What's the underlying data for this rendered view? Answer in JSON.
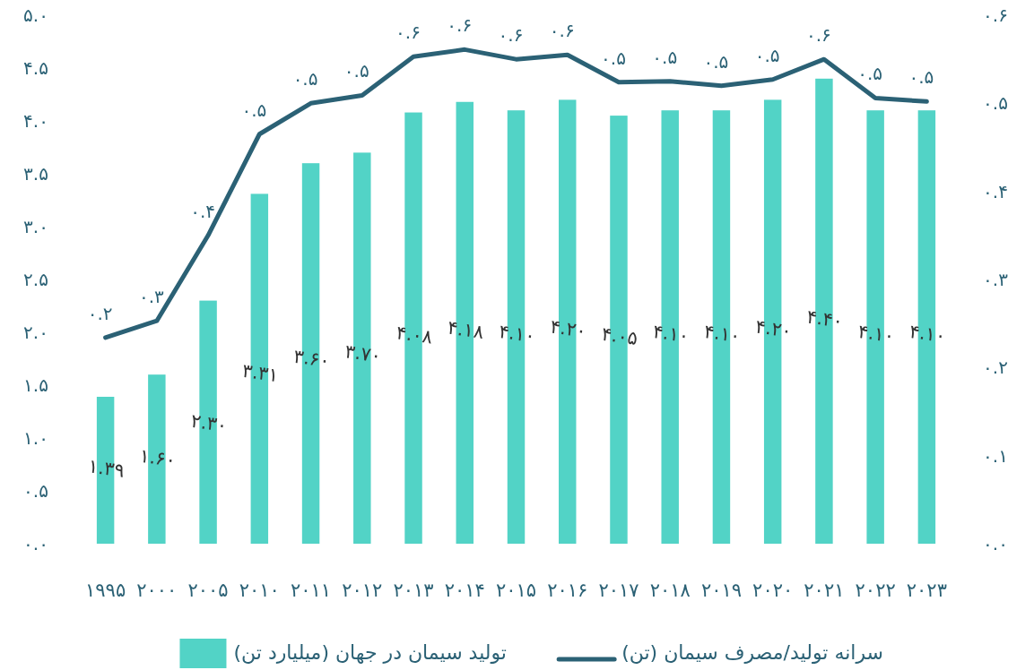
{
  "chart_data": {
    "type": "bar",
    "categories": [
      "۱۹۹۵",
      "۲۰۰۰",
      "۲۰۰۵",
      "۲۰۱۰",
      "۲۰۱۱",
      "۲۰۱۲",
      "۲۰۱۳",
      "۲۰۱۴",
      "۲۰۱۵",
      "۲۰۱۶",
      "۲۰۱۷",
      "۲۰۱۸",
      "۲۰۱۹",
      "۲۰۲۰",
      "۲۰۲۱",
      "۲۰۲۲",
      "۲۰۲۳"
    ],
    "series": [
      {
        "name": "تولید سیمان در جهان (میلیارد تن)",
        "color": "#52d3c6",
        "values": [
          1.39,
          1.6,
          2.3,
          3.31,
          3.6,
          3.7,
          4.08,
          4.18,
          4.1,
          4.2,
          4.05,
          4.1,
          4.1,
          4.2,
          4.4,
          4.1,
          4.1
        ],
        "value_labels": [
          "۱.۳۹",
          "۱.۶۰",
          "۲.۳۰",
          "۳.۳۱",
          "۳.۶۰",
          "۳.۷۰",
          "۴.۰۸",
          "۴.۱۸",
          "۴.۱۰",
          "۴.۲۰",
          "۴.۰۵",
          "۴.۱۰",
          "۴.۱۰",
          "۴.۲۰",
          "۴.۴۰",
          "۴.۱۰",
          "۴.۱۰"
        ]
      },
      {
        "name": "سرانه تولید/مصرف سیمان (تن)",
        "type": "line",
        "axis": "y2",
        "color": "#2b6175",
        "values": [
          0.234,
          0.253,
          0.35,
          0.465,
          0.5,
          0.509,
          0.553,
          0.561,
          0.55,
          0.555,
          0.524,
          0.525,
          0.52,
          0.527,
          0.55,
          0.506,
          0.502
        ],
        "value_labels": [
          "۰.۲",
          "۰.۳",
          "۰.۴",
          "۰.۵",
          "۰.۵",
          "۰.۵",
          "۰.۶",
          "۰.۶",
          "۰.۶",
          "۰.۶",
          "۰.۵",
          "۰.۵",
          "۰.۵",
          "۰.۵",
          "۰.۶",
          "۰.۵",
          "۰.۵"
        ]
      }
    ],
    "ylim": [
      0,
      5
    ],
    "yticks": [
      {
        "value": 0,
        "label": "۰.۰"
      },
      {
        "value": 0.5,
        "label": "۰.۵"
      },
      {
        "value": 1,
        "label": "۱.۰"
      },
      {
        "value": 1.5,
        "label": "۱.۵"
      },
      {
        "value": 2,
        "label": "۲.۰"
      },
      {
        "value": 2.5,
        "label": "۲.۵"
      },
      {
        "value": 3,
        "label": "۳.۰"
      },
      {
        "value": 3.5,
        "label": "۳.۵"
      },
      {
        "value": 4,
        "label": "۴.۰"
      },
      {
        "value": 4.5,
        "label": "۴.۵"
      },
      {
        "value": 5,
        "label": "۵.۰"
      }
    ],
    "y2lim": [
      0,
      0.6
    ],
    "y2ticks": [
      {
        "value": 0,
        "label": "۰.۰"
      },
      {
        "value": 0.1,
        "label": "۰.۱"
      },
      {
        "value": 0.2,
        "label": "۰.۲"
      },
      {
        "value": 0.3,
        "label": "۰.۳"
      },
      {
        "value": 0.4,
        "label": "۰.۴"
      },
      {
        "value": 0.5,
        "label": "۰.۵"
      },
      {
        "value": 0.6,
        "label": "۰.۶"
      }
    ],
    "grid": false,
    "legend": "bottom",
    "marker": "none",
    "line_style": "solid"
  }
}
